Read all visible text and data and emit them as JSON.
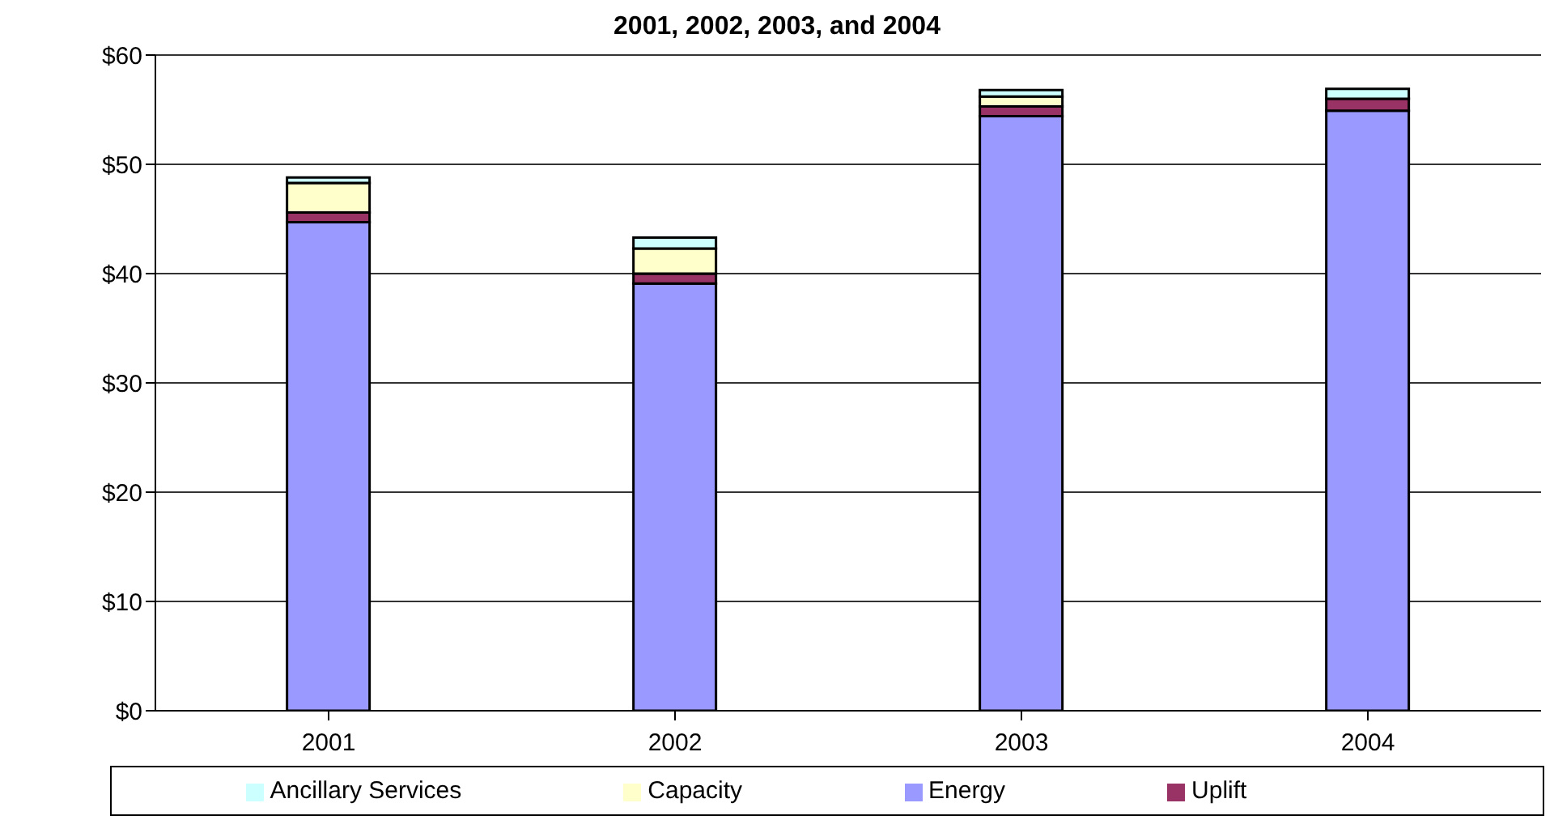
{
  "chart_data": {
    "type": "bar",
    "title": "2001, 2002, 2003, and 2004",
    "categories": [
      "2001",
      "2002",
      "2003",
      "2004"
    ],
    "series": [
      {
        "name": "Energy",
        "color": "#9999ff",
        "values": [
          44.7,
          39.1,
          54.4,
          54.9
        ]
      },
      {
        "name": "Uplift",
        "color": "#993366",
        "values": [
          0.9,
          0.9,
          0.9,
          1.1
        ]
      },
      {
        "name": "Capacity",
        "color": "#ffffcc",
        "values": [
          2.7,
          2.3,
          0.9,
          0
        ]
      },
      {
        "name": "Ancillary Services",
        "color": "#ccffff",
        "values": [
          0.5,
          1.0,
          0.6,
          0.9
        ]
      }
    ],
    "stacked": true,
    "ylim": [
      0,
      60
    ],
    "yticks": [
      {
        "value": 0,
        "label": "$0"
      },
      {
        "value": 10,
        "label": "$10"
      },
      {
        "value": 20,
        "label": "$20"
      },
      {
        "value": 30,
        "label": "$30"
      },
      {
        "value": 40,
        "label": "$40"
      },
      {
        "value": 50,
        "label": "$50"
      },
      {
        "value": 60,
        "label": "$60"
      }
    ],
    "grid": "y",
    "legend": "bottom"
  }
}
